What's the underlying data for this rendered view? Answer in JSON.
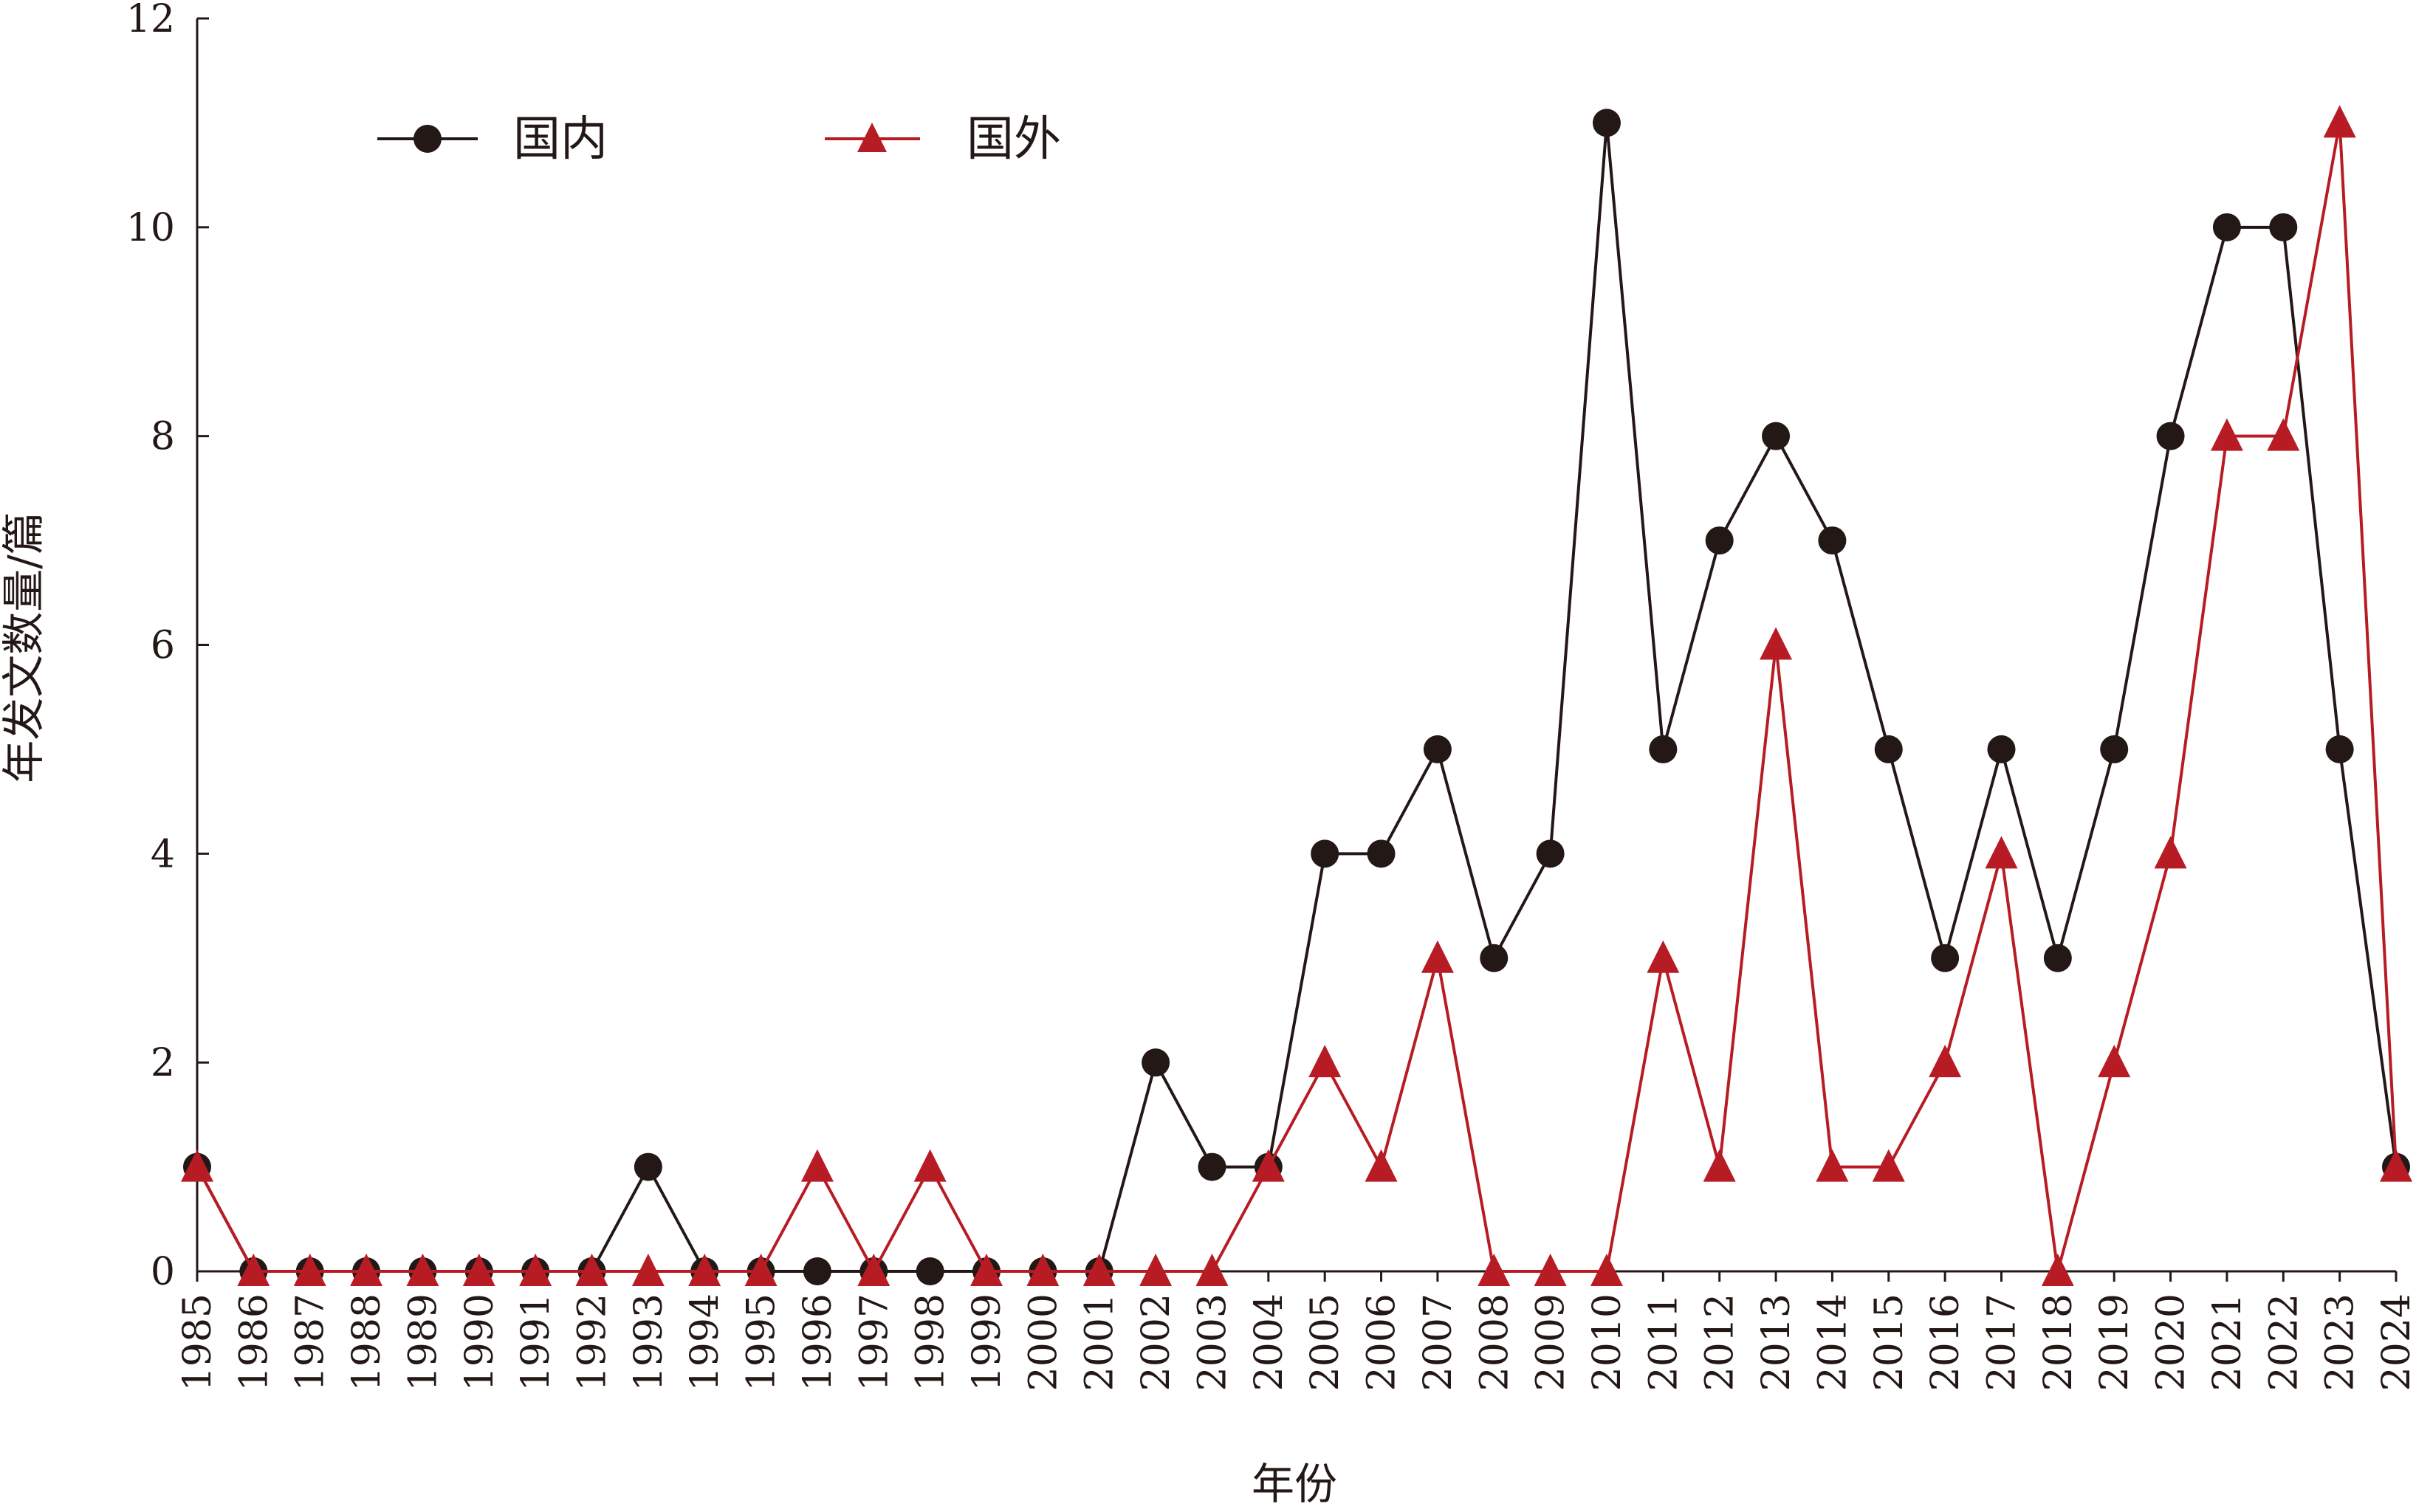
{
  "chart_data": {
    "type": "line",
    "title": "",
    "xlabel": "年份",
    "ylabel": "年发文数量/篇",
    "ylim": [
      0,
      12
    ],
    "yticks": [
      "0",
      "2",
      "4",
      "6",
      "8",
      "10",
      "12"
    ],
    "grid": false,
    "legend_position": "top-left",
    "x": [
      "1985",
      "1986",
      "1987",
      "1988",
      "1989",
      "1990",
      "1991",
      "1992",
      "1993",
      "1994",
      "1995",
      "1996",
      "1997",
      "1998",
      "1999",
      "2000",
      "2001",
      "2002",
      "2003",
      "2004",
      "2005",
      "2006",
      "2007",
      "2008",
      "2009",
      "2010",
      "2011",
      "2012",
      "2013",
      "2014",
      "2015",
      "2016",
      "2017",
      "2018",
      "2019",
      "2020",
      "2021",
      "2022",
      "2023",
      "2024"
    ],
    "series": [
      {
        "name": "国内",
        "marker": "circle",
        "color": "#231815",
        "values": [
          1,
          0,
          0,
          0,
          0,
          0,
          0,
          0,
          1,
          0,
          0,
          0,
          0,
          0,
          0,
          0,
          0,
          2,
          1,
          1,
          4,
          4,
          5,
          3,
          4,
          11,
          5,
          7,
          8,
          7,
          5,
          3,
          5,
          3,
          5,
          8,
          10,
          10,
          5,
          1
        ]
      },
      {
        "name": "国外",
        "marker": "triangle",
        "color": "#b71c24",
        "values": [
          1,
          0,
          0,
          0,
          0,
          0,
          0,
          0,
          0,
          0,
          0,
          1,
          0,
          1,
          0,
          0,
          0,
          0,
          0,
          1,
          2,
          1,
          3,
          0,
          0,
          0,
          3,
          1,
          6,
          1,
          1,
          2,
          4,
          0,
          2,
          4,
          8,
          8,
          11,
          1
        ]
      }
    ]
  }
}
